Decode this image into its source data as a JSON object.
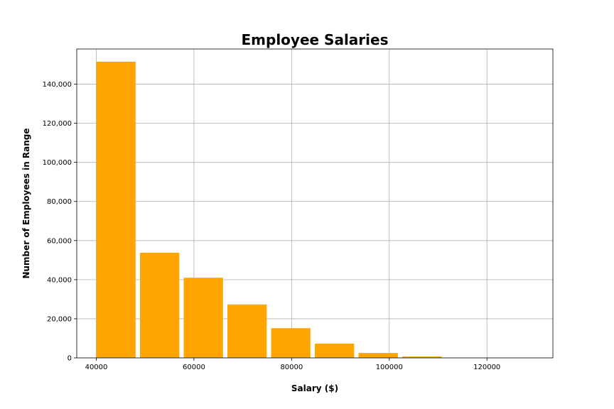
{
  "chart_data": {
    "type": "bar",
    "title": "Employee Salaries",
    "xlabel": "Salary ($)",
    "ylabel": "Number of Employees in Range",
    "bar_color": "#FFA500",
    "grid": true,
    "xlim": [
      36000,
      133500
    ],
    "ylim": [
      0,
      158000
    ],
    "xticks": [
      40000,
      60000,
      80000,
      100000,
      120000
    ],
    "xtick_labels": [
      "40000",
      "60000",
      "80000",
      "100000",
      "120000"
    ],
    "yticks": [
      0,
      20000,
      40000,
      60000,
      80000,
      100000,
      120000,
      140000
    ],
    "ytick_labels": [
      "0",
      "20,000",
      "40,000",
      "60,000",
      "80,000",
      "100,000",
      "120,000",
      "140,000"
    ],
    "bin_width": 8950,
    "bar_width": 8050,
    "bins_start": [
      40000,
      48950,
      57900,
      66850,
      75800,
      84750,
      93700,
      102650,
      111600,
      120550
    ],
    "values": [
      151500,
      53800,
      41000,
      27300,
      15200,
      7300,
      2500,
      700,
      0,
      0
    ]
  }
}
